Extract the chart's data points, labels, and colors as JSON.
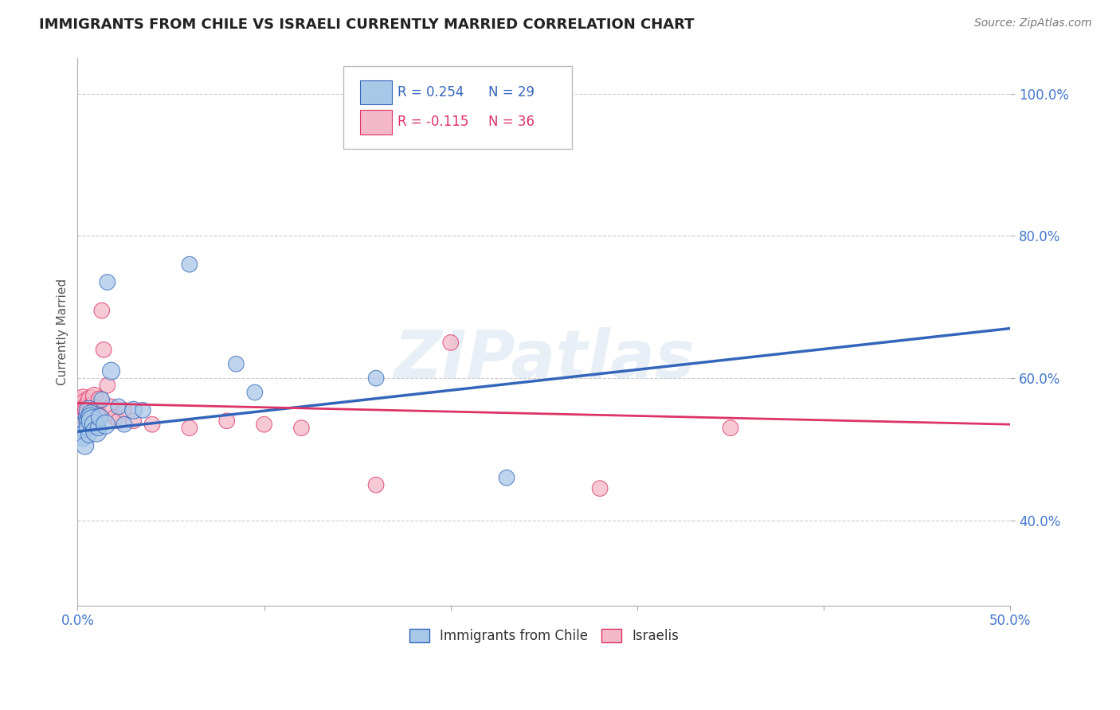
{
  "title": "IMMIGRANTS FROM CHILE VS ISRAELI CURRENTLY MARRIED CORRELATION CHART",
  "source": "Source: ZipAtlas.com",
  "ylabel_label": "Currently Married",
  "xmin": 0.0,
  "xmax": 0.5,
  "ymin": 0.28,
  "ymax": 1.05,
  "x_ticks": [
    0.0,
    0.1,
    0.2,
    0.3,
    0.4,
    0.5
  ],
  "x_tick_labels": [
    "0.0%",
    "",
    "",
    "",
    "",
    "50.0%"
  ],
  "y_ticks": [
    0.4,
    0.6,
    0.8,
    1.0
  ],
  "y_tick_labels": [
    "40.0%",
    "60.0%",
    "80.0%",
    "100.0%"
  ],
  "grid_color": "#cccccc",
  "background_color": "#ffffff",
  "blue_color": "#a8c8e8",
  "pink_color": "#f4b8c8",
  "blue_line_color": "#3366bb",
  "pink_line_color": "#dd3366",
  "watermark": "ZIPatlas",
  "legend_r_blue": "R = 0.254",
  "legend_n_blue": "N = 29",
  "legend_r_pink": "R = -0.115",
  "legend_n_pink": "N = 36",
  "legend_label_blue": "Immigrants from Chile",
  "legend_label_pink": "Israelis",
  "blue_points_x": [
    0.002,
    0.003,
    0.003,
    0.004,
    0.004,
    0.005,
    0.005,
    0.006,
    0.006,
    0.007,
    0.007,
    0.008,
    0.009,
    0.01,
    0.011,
    0.012,
    0.013,
    0.015,
    0.016,
    0.018,
    0.022,
    0.025,
    0.03,
    0.035,
    0.06,
    0.085,
    0.095,
    0.16,
    0.23
  ],
  "blue_points_y": [
    0.535,
    0.525,
    0.515,
    0.545,
    0.505,
    0.54,
    0.53,
    0.555,
    0.52,
    0.55,
    0.545,
    0.54,
    0.535,
    0.525,
    0.53,
    0.545,
    0.57,
    0.535,
    0.735,
    0.61,
    0.56,
    0.535,
    0.555,
    0.555,
    0.76,
    0.62,
    0.58,
    0.6,
    0.46
  ],
  "blue_points_size": [
    200,
    150,
    200,
    150,
    250,
    200,
    200,
    300,
    200,
    250,
    300,
    400,
    300,
    350,
    200,
    250,
    200,
    300,
    200,
    250,
    200,
    200,
    250,
    200,
    200,
    200,
    200,
    200,
    200
  ],
  "pink_points_x": [
    0.001,
    0.002,
    0.002,
    0.003,
    0.003,
    0.004,
    0.004,
    0.005,
    0.005,
    0.006,
    0.006,
    0.007,
    0.007,
    0.008,
    0.008,
    0.009,
    0.01,
    0.011,
    0.012,
    0.013,
    0.014,
    0.016,
    0.018,
    0.02,
    0.022,
    0.025,
    0.03,
    0.04,
    0.06,
    0.08,
    0.1,
    0.12,
    0.16,
    0.2,
    0.28,
    0.35
  ],
  "pink_points_y": [
    0.555,
    0.565,
    0.545,
    0.57,
    0.545,
    0.565,
    0.54,
    0.56,
    0.545,
    0.555,
    0.54,
    0.56,
    0.57,
    0.56,
    0.545,
    0.575,
    0.555,
    0.545,
    0.57,
    0.695,
    0.64,
    0.59,
    0.56,
    0.545,
    0.54,
    0.555,
    0.54,
    0.535,
    0.53,
    0.54,
    0.535,
    0.53,
    0.45,
    0.65,
    0.445,
    0.53
  ],
  "pink_points_size": [
    500,
    400,
    400,
    350,
    350,
    300,
    350,
    300,
    350,
    400,
    350,
    300,
    300,
    300,
    350,
    250,
    300,
    250,
    250,
    200,
    200,
    200,
    200,
    200,
    200,
    200,
    200,
    200,
    200,
    200,
    200,
    200,
    200,
    200,
    200,
    200
  ]
}
